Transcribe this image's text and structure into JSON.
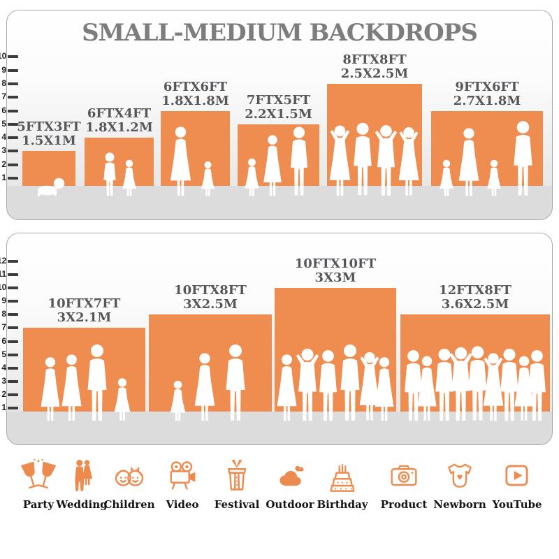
{
  "title": "SMALL-MEDIUM BACKDROPS",
  "panels": [
    {
      "name": "small-medium-sizes",
      "ruler": [
        "1",
        "2",
        "3",
        "4",
        "5",
        "6",
        "7",
        "8",
        "9",
        "10"
      ],
      "backdrops": [
        {
          "size_ft": "5FTX3FT",
          "size_m": "1.5X1M",
          "people": "crawling-baby"
        },
        {
          "size_ft": "6FTX4FT",
          "size_m": "1.8X1.2M",
          "people": "boy-and-girl"
        },
        {
          "size_ft": "6FTX6FT",
          "size_m": "1.8X1.8M",
          "people": "mother-with-children"
        },
        {
          "size_ft": "7FTX5FT",
          "size_m": "2.2X1.5M",
          "people": "family-of-three"
        },
        {
          "size_ft": "8FTX8FT",
          "size_m": "2.5X2.5M",
          "people": "group-of-four-adults"
        },
        {
          "size_ft": "9FTX6FT",
          "size_m": "2.7X1.8M",
          "people": "family-of-four"
        }
      ]
    },
    {
      "name": "medium-large-sizes",
      "ruler": [
        "1",
        "2",
        "3",
        "4",
        "5",
        "6",
        "7",
        "8",
        "9",
        "10",
        "11",
        "12"
      ],
      "backdrops": [
        {
          "size_ft": "10FTX7FT",
          "size_m": "3X2.1M",
          "people": "family-of-four"
        },
        {
          "size_ft": "10FTX8FT",
          "size_m": "3X2.5M",
          "people": "family-of-three"
        },
        {
          "size_ft": "10FTX10FT",
          "size_m": "3X3M",
          "people": "group-of-six-adults"
        },
        {
          "size_ft": "12FTX8FT",
          "size_m": "3.6X2.5M",
          "people": "group-of-nine-adults"
        }
      ]
    }
  ],
  "categories": [
    {
      "label": "Party",
      "icon": "party-glasses-icon"
    },
    {
      "label": "Wedding",
      "icon": "wedding-couple-icon"
    },
    {
      "label": "Children",
      "icon": "children-faces-icon"
    },
    {
      "label": "Video",
      "icon": "video-camera-icon"
    },
    {
      "label": "Festival",
      "icon": "gift-box-icon"
    },
    {
      "label": "Outdoor",
      "icon": "cloud-icon"
    },
    {
      "label": "Birthday",
      "icon": "birthday-cake-icon"
    },
    {
      "label": "Product",
      "icon": "photo-camera-icon"
    },
    {
      "label": "Newborn",
      "icon": "baby-onesie-icon"
    },
    {
      "label": "YouTube",
      "icon": "play-button-icon"
    }
  ],
  "colors": {
    "backdrop_orange": "#EF8C4F",
    "icon_orange": "#ED8B4F",
    "title_gray": "#7D7D7D",
    "label_gray": "#56575A",
    "ruler_dark": "#3C3C3C",
    "floor_gray": "#DCDCDC",
    "panel_border": "#A9A9A9",
    "category_label": "#141414"
  }
}
